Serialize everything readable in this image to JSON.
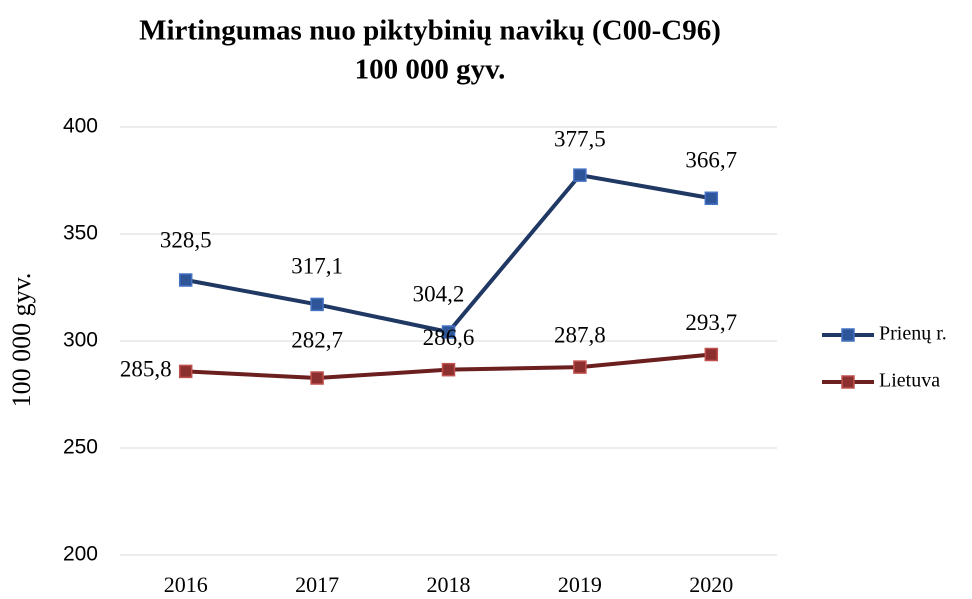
{
  "chart_data": {
    "type": "line",
    "title": "Mirtingumas nuo piktybinių navikų (C00-C96)",
    "subtitle": "100 000 gyv.",
    "y_label": "100 000 gyv.",
    "categories": [
      "2016",
      "2017",
      "2018",
      "2019",
      "2020"
    ],
    "series": [
      {
        "name": "Prienų r.",
        "color": "#1f3864",
        "marker_color": "#2e5597",
        "values": [
          328.5,
          317.1,
          304.2,
          377.5,
          366.7
        ],
        "value_labels": [
          "328,5",
          "317,1",
          "304,2",
          "377,5",
          "366,7"
        ]
      },
      {
        "name": "Lietuva",
        "color": "#6b1f1f",
        "marker_color": "#8b2f2f",
        "values": [
          285.8,
          282.7,
          286.6,
          287.8,
          293.7
        ],
        "value_labels": [
          "285,8",
          "282,7",
          "286,6",
          "287,8",
          "293,7"
        ]
      }
    ],
    "ylim": [
      200,
      400
    ],
    "yticks": [
      200,
      250,
      300,
      350,
      400
    ],
    "grid": true,
    "legend": "right"
  }
}
